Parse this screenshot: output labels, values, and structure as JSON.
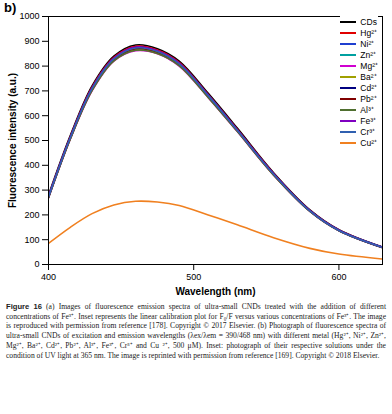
{
  "chart_data": {
    "type": "line",
    "title": "b)",
    "x_label": "Wavelength (nm)",
    "y_label": "Fluorescence intensity (a.u.)",
    "x": [
      400,
      415,
      430,
      445,
      460,
      475,
      490,
      510,
      530,
      555,
      580,
      600,
      630
    ],
    "xlim": [
      400,
      630
    ],
    "xticks": [
      400,
      500,
      600
    ],
    "ylim": [
      0,
      1000
    ],
    "yticks": [
      0,
      100,
      200,
      300,
      400,
      500,
      600,
      700,
      800,
      900,
      1000
    ],
    "grid": false,
    "legend": "top-right",
    "series": [
      {
        "name": "CDs",
        "color": "#000000",
        "values": [
          280,
          520,
          720,
          840,
          885,
          870,
          820,
          690,
          550,
          370,
          220,
          140,
          70
        ]
      },
      {
        "name": "Hg²⁺",
        "color": "#e00000",
        "values": [
          275,
          515,
          715,
          835,
          880,
          865,
          815,
          685,
          545,
          367,
          218,
          139,
          69
        ]
      },
      {
        "name": "Ni²⁺",
        "color": "#1f3fd0",
        "values": [
          272,
          510,
          708,
          828,
          872,
          858,
          808,
          680,
          541,
          364,
          216,
          138,
          69
        ]
      },
      {
        "name": "Zn²⁺",
        "color": "#00a0a0",
        "values": [
          270,
          508,
          705,
          825,
          868,
          855,
          805,
          677,
          539,
          362,
          215,
          137,
          68
        ]
      },
      {
        "name": "Mg²⁺",
        "color": "#d000d0",
        "values": [
          268,
          505,
          700,
          820,
          862,
          850,
          800,
          673,
          536,
          360,
          214,
          136,
          68
        ]
      },
      {
        "name": "Ba²⁺",
        "color": "#a0a000",
        "values": [
          270,
          507,
          703,
          822,
          865,
          852,
          803,
          675,
          538,
          361,
          215,
          137,
          68
        ]
      },
      {
        "name": "Cd²⁺",
        "color": "#000080",
        "values": [
          273,
          512,
          710,
          830,
          875,
          860,
          810,
          682,
          542,
          365,
          217,
          138,
          69
        ]
      },
      {
        "name": "Pb²⁺",
        "color": "#800000",
        "values": [
          271,
          509,
          706,
          826,
          870,
          856,
          806,
          679,
          540,
          363,
          216,
          137,
          68
        ]
      },
      {
        "name": "Al³⁺",
        "color": "#4f6f2f",
        "values": [
          269,
          506,
          702,
          821,
          864,
          851,
          802,
          674,
          537,
          361,
          214,
          136,
          68
        ]
      },
      {
        "name": "Fe³⁺",
        "color": "#7f00c0",
        "values": [
          274,
          513,
          712,
          832,
          877,
          862,
          812,
          683,
          543,
          366,
          217,
          138,
          69
        ]
      },
      {
        "name": "Cr³⁺",
        "color": "#3060b0",
        "values": [
          272,
          511,
          709,
          829,
          873,
          859,
          809,
          681,
          541,
          364,
          216,
          137,
          69
        ]
      },
      {
        "name": "Cu²⁺",
        "color": "#f08020",
        "values": [
          85,
          150,
          205,
          240,
          255,
          252,
          238,
          200,
          160,
          108,
          65,
          42,
          22
        ]
      }
    ]
  },
  "caption": {
    "label": "Figure 16",
    "text": "(a) Images of fluorescence emission spectra of ultra-small CNDs treated with the addition of different concentrations of Fe³⁺. Inset represents the linear calibration plot for F₀/F versus various concentrations of Fe³⁺. The image is reproduced with permission from reference [178]. Copyright © 2017 Elsevier. (b) Photograph of fluorescence spectra of ultra-small CNDs of excitation and emission wavelengths (λex/λem = 390/468 nm) with different metal (Hg²⁺, Ni²⁺, Zn²⁺, Mg²⁺, Ba²⁺, Cd²⁺, Pb²⁺, Al³⁺, Fe³⁺, Cr³⁺ and Cu ²⁺, 500 μM). Inset: photograph of their respective solutions under the condition of UV light at 365 nm. The image is reprinted with permission from reference [169]. Copyright © 2018 Elsevier."
  }
}
